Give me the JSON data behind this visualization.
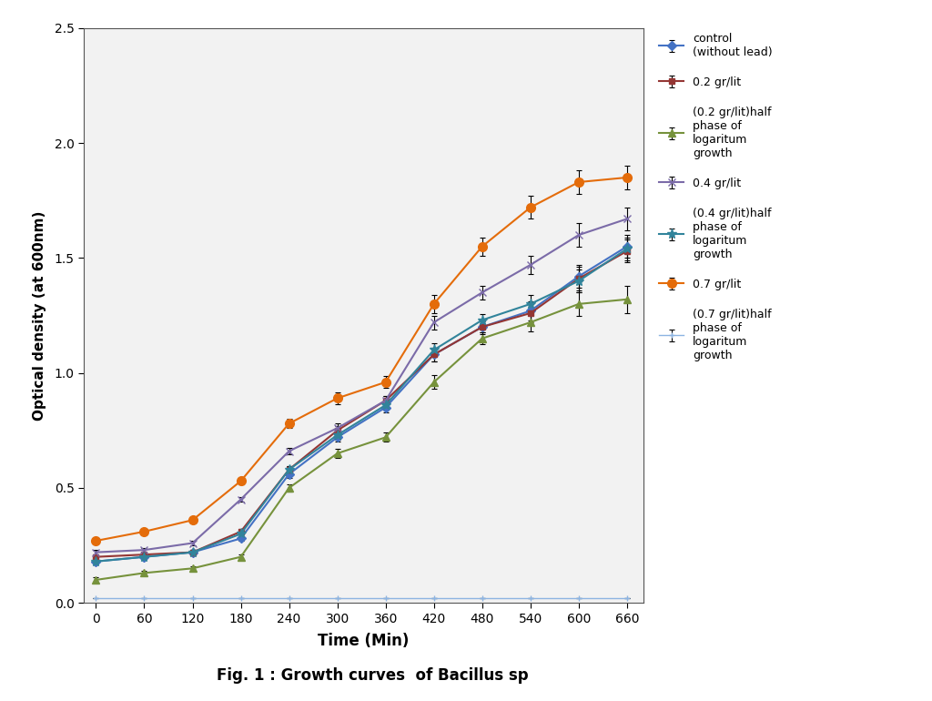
{
  "x": [
    0,
    60,
    120,
    180,
    240,
    300,
    360,
    420,
    480,
    540,
    600,
    660
  ],
  "series": [
    {
      "key": "control",
      "label": "control\n(without lead)",
      "color": "#4472C4",
      "marker": "D",
      "markersize": 5,
      "linewidth": 1.5,
      "y": [
        0.18,
        0.2,
        0.22,
        0.28,
        0.56,
        0.72,
        0.85,
        1.08,
        1.2,
        1.27,
        1.42,
        1.55
      ],
      "yerr": [
        0.01,
        0.01,
        0.01,
        0.01,
        0.015,
        0.02,
        0.02,
        0.03,
        0.025,
        0.04,
        0.05,
        0.05
      ]
    },
    {
      "key": "gr02",
      "label": "0.2 gr/lit",
      "color": "#943634",
      "marker": "s",
      "markersize": 5,
      "linewidth": 1.5,
      "y": [
        0.2,
        0.21,
        0.22,
        0.31,
        0.58,
        0.75,
        0.88,
        1.08,
        1.2,
        1.26,
        1.41,
        1.53
      ],
      "yerr": [
        0.01,
        0.01,
        0.01,
        0.01,
        0.015,
        0.02,
        0.02,
        0.03,
        0.03,
        0.04,
        0.05,
        0.05
      ]
    },
    {
      "key": "gr02_half",
      "label": "(0.2 gr/lit)half\nphase of\nlogaritum\ngrowth",
      "color": "#76923C",
      "marker": "^",
      "markersize": 6,
      "linewidth": 1.5,
      "y": [
        0.1,
        0.13,
        0.15,
        0.2,
        0.5,
        0.65,
        0.72,
        0.96,
        1.15,
        1.22,
        1.3,
        1.32
      ],
      "yerr": [
        0.01,
        0.01,
        0.01,
        0.01,
        0.015,
        0.02,
        0.02,
        0.03,
        0.025,
        0.04,
        0.05,
        0.06
      ]
    },
    {
      "key": "gr04",
      "label": "0.4 gr/lit",
      "color": "#7B6BA8",
      "marker": "x",
      "markersize": 6,
      "linewidth": 1.5,
      "y": [
        0.22,
        0.23,
        0.26,
        0.45,
        0.66,
        0.76,
        0.88,
        1.22,
        1.35,
        1.47,
        1.6,
        1.67
      ],
      "yerr": [
        0.01,
        0.01,
        0.01,
        0.01,
        0.015,
        0.02,
        0.02,
        0.03,
        0.03,
        0.04,
        0.05,
        0.05
      ]
    },
    {
      "key": "gr04_half",
      "label": "(0.4 gr/lit)half\nphase of\nlogaritum\ngrowth",
      "color": "#31849B",
      "marker": "*",
      "markersize": 8,
      "linewidth": 1.5,
      "y": [
        0.18,
        0.2,
        0.22,
        0.3,
        0.58,
        0.73,
        0.86,
        1.1,
        1.23,
        1.3,
        1.4,
        1.54
      ],
      "yerr": [
        0.01,
        0.01,
        0.01,
        0.01,
        0.015,
        0.02,
        0.02,
        0.03,
        0.025,
        0.04,
        0.05,
        0.05
      ]
    },
    {
      "key": "gr07",
      "label": "0.7 gr/lit",
      "color": "#E46C0A",
      "marker": "o",
      "markersize": 7,
      "linewidth": 1.5,
      "y": [
        0.27,
        0.31,
        0.36,
        0.53,
        0.78,
        0.89,
        0.96,
        1.3,
        1.55,
        1.72,
        1.83,
        1.85
      ],
      "yerr": [
        0.01,
        0.01,
        0.01,
        0.015,
        0.02,
        0.025,
        0.025,
        0.04,
        0.04,
        0.05,
        0.05,
        0.05
      ]
    },
    {
      "key": "gr07_half",
      "label": "(0.7 gr/lit)half\nphase of\nlogaritum\ngrowth",
      "color": "#8DB4E2",
      "marker": "+",
      "markersize": 5,
      "linewidth": 1.0,
      "y": [
        0.02,
        0.02,
        0.02,
        0.02,
        0.02,
        0.02,
        0.02,
        0.02,
        0.02,
        0.02,
        0.02,
        0.02
      ],
      "yerr": [
        0.0,
        0.0,
        0.0,
        0.0,
        0.0,
        0.0,
        0.0,
        0.0,
        0.0,
        0.0,
        0.0,
        0.0
      ]
    }
  ],
  "xlabel": "Time (Min)",
  "ylabel": "Optical density (at 600nm)",
  "ylim": [
    0,
    2.5
  ],
  "yticks": [
    0,
    0.5,
    1.0,
    1.5,
    2.0,
    2.5
  ],
  "xlim": [
    -15,
    680
  ],
  "xticks": [
    0,
    60,
    120,
    180,
    240,
    300,
    360,
    420,
    480,
    540,
    600,
    660
  ],
  "caption": "Fig. 1 : Growth curves  of Bacillus sp",
  "plot_bg_color": "#F2F2F2",
  "fig_bg_color": "#FFFFFF"
}
